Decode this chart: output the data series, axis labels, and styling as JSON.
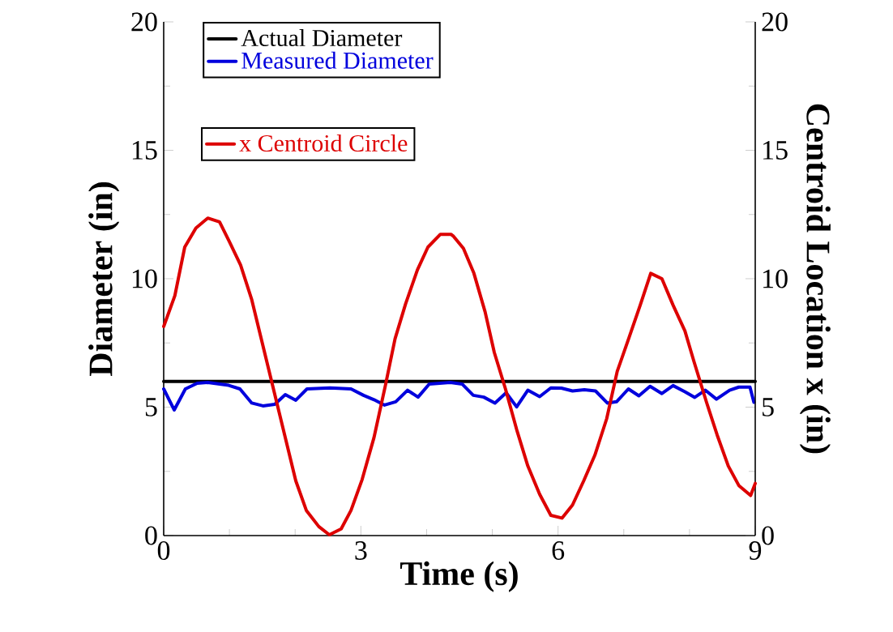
{
  "chart_data": {
    "type": "line",
    "xlabel": "Time (s)",
    "ylabel": "Diameter (in)",
    "y2label": "Centroid Location x (in)",
    "xlim": [
      0,
      9
    ],
    "xticks": [
      0,
      3,
      6,
      9
    ],
    "ylim": [
      0,
      20
    ],
    "yticks": [
      0,
      5,
      10,
      15,
      20
    ],
    "y2lim": [
      0,
      20
    ],
    "y2ticks": [
      0,
      5,
      10,
      15,
      20
    ],
    "legend": "top left",
    "series": [
      {
        "name": "Actual Diameter",
        "color": "#000000",
        "x": [
          0,
          9
        ],
        "values": [
          6,
          6
        ]
      },
      {
        "name": "Measured Diameter",
        "color": "#0000dd",
        "x": [
          0,
          0.16,
          0.33,
          0.51,
          0.67,
          0.99,
          1.16,
          1.34,
          1.51,
          1.69,
          1.85,
          2.01,
          2.18,
          2.53,
          2.85,
          3.04,
          3.2,
          3.36,
          3.53,
          3.71,
          3.87,
          4.04,
          4.36,
          4.54,
          4.71,
          4.87,
          5.04,
          5.21,
          5.37,
          5.54,
          5.72,
          5.89,
          6.05,
          6.22,
          6.4,
          6.57,
          6.75,
          6.89,
          7.07,
          7.23,
          7.4,
          7.58,
          7.75,
          7.93,
          8.08,
          8.24,
          8.41,
          8.61,
          8.75,
          8.92,
          8.98
        ],
        "values": [
          5.71,
          4.89,
          5.71,
          5.93,
          5.96,
          5.85,
          5.71,
          5.16,
          5.05,
          5.11,
          5.49,
          5.27,
          5.71,
          5.75,
          5.71,
          5.46,
          5.29,
          5.08,
          5.21,
          5.66,
          5.39,
          5.9,
          5.96,
          5.9,
          5.46,
          5.39,
          5.16,
          5.56,
          5.01,
          5.66,
          5.41,
          5.75,
          5.74,
          5.63,
          5.68,
          5.63,
          5.16,
          5.21,
          5.71,
          5.44,
          5.81,
          5.53,
          5.84,
          5.6,
          5.38,
          5.66,
          5.31,
          5.66,
          5.78,
          5.78,
          5.19
        ]
      },
      {
        "name": "x Centroid Circle",
        "color": "#dd0000",
        "axis": "y2",
        "x": [
          0,
          0.17,
          0.32,
          0.49,
          0.67,
          0.85,
          1.0,
          1.17,
          1.34,
          2.01,
          2.17,
          2.36,
          2.52,
          2.7,
          2.85,
          3.02,
          3.2,
          3.37,
          3.52,
          3.68,
          3.86,
          4.02,
          4.21,
          4.37,
          4.41,
          4.56,
          4.72,
          4.89,
          5.03,
          5.2,
          5.37,
          5.54,
          5.72,
          5.89,
          6.06,
          6.22,
          6.39,
          6.56,
          6.74,
          6.9,
          7.08,
          7.25,
          7.41,
          7.58,
          7.75,
          7.93,
          8.07,
          8.26,
          8.42,
          8.59,
          8.75,
          8.93,
          9.0
        ],
        "values": [
          8.14,
          9.34,
          11.23,
          11.97,
          12.36,
          12.21,
          11.44,
          10.53,
          9.18,
          2.13,
          0.98,
          0.35,
          0.03,
          0.26,
          0.98,
          2.19,
          3.82,
          5.81,
          7.66,
          9.02,
          10.34,
          11.23,
          11.73,
          11.73,
          11.65,
          11.18,
          10.21,
          8.71,
          7.13,
          5.71,
          4.13,
          2.71,
          1.61,
          0.79,
          0.68,
          1.19,
          2.13,
          3.13,
          4.55,
          6.39,
          7.71,
          8.97,
          10.21,
          10.0,
          8.97,
          7.97,
          6.76,
          5.18,
          3.92,
          2.71,
          1.95,
          1.56,
          2.03
        ]
      }
    ]
  }
}
